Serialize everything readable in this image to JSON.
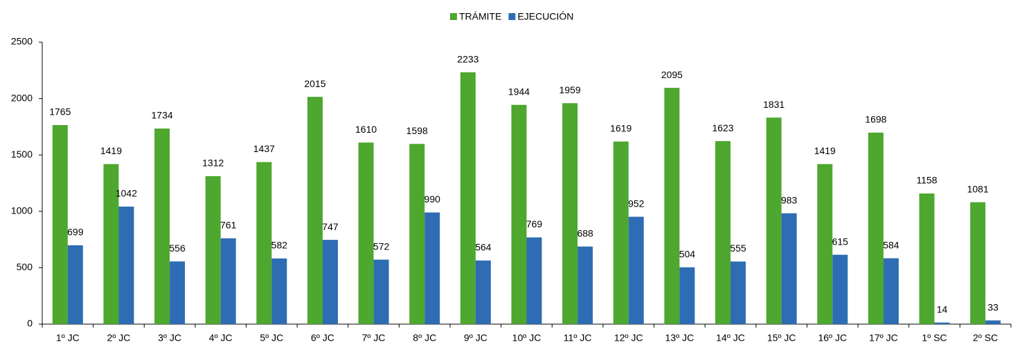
{
  "chart_data": {
    "type": "bar",
    "categories": [
      "1º JC",
      "2º JC",
      "3º JC",
      "4º JC",
      "5º JC",
      "6º JC",
      "7º JC",
      "8º JC",
      "9º JC",
      "10º JC",
      "11º JC",
      "12º JC",
      "13º JC",
      "14º JC",
      "15º JC",
      "16º JC",
      "17º JC",
      "1º SC",
      "2º SC"
    ],
    "series": [
      {
        "name": "TRÁMITE",
        "color": "#4ea72e",
        "values": [
          1765,
          1419,
          1734,
          1312,
          1437,
          2015,
          1610,
          1598,
          2233,
          1944,
          1959,
          1619,
          2095,
          1623,
          1831,
          1419,
          1698,
          1158,
          1081
        ]
      },
      {
        "name": "EJECUCIÓN",
        "color": "#2e6db4",
        "values": [
          699,
          1042,
          556,
          761,
          582,
          747,
          572,
          990,
          564,
          769,
          688,
          952,
          504,
          555,
          983,
          615,
          584,
          14,
          33
        ]
      }
    ],
    "ylim": [
      0,
      2500
    ],
    "yticks": [
      0,
      500,
      1000,
      1500,
      2000,
      2500
    ],
    "grid": false,
    "legend": "top"
  }
}
